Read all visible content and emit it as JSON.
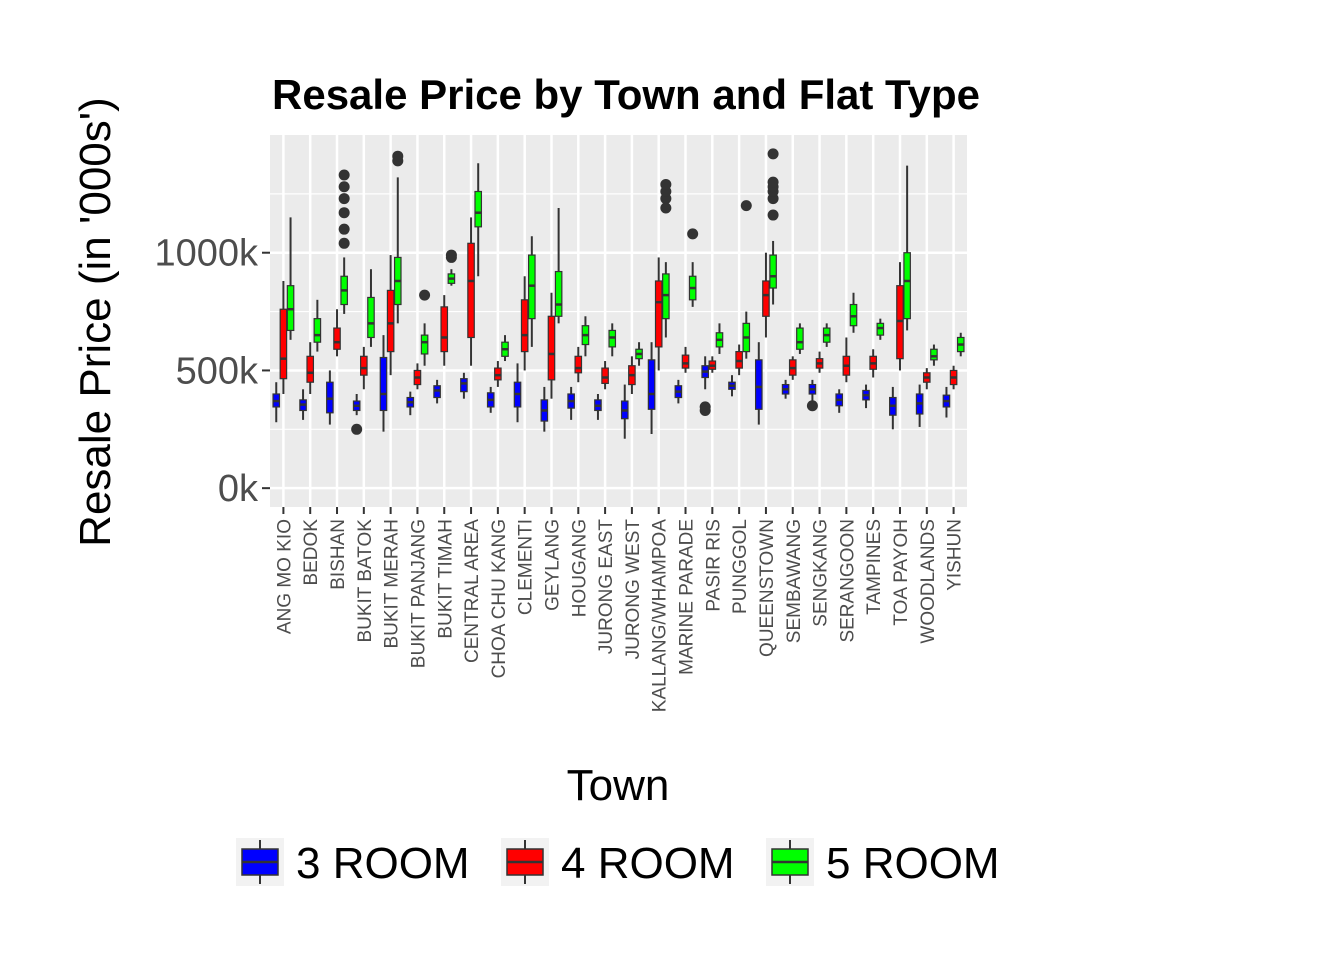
{
  "chart_data": {
    "type": "boxplot",
    "title": "Resale Price by Town and Flat Type",
    "xlabel": "Town",
    "ylabel": "Resale Price (in '000s')",
    "ylim": [
      -80,
      1500
    ],
    "y_ticks": [
      0,
      500,
      1000
    ],
    "y_tick_labels": [
      "0k",
      "500k",
      "1000k"
    ],
    "grid": true,
    "legend_position": "bottom",
    "categories": [
      "ANG MO KIO",
      "BEDOK",
      "BISHAN",
      "BUKIT BATOK",
      "BUKIT MERAH",
      "BUKIT PANJANG",
      "BUKIT TIMAH",
      "CENTRAL AREA",
      "CHOA CHU KANG",
      "CLEMENTI",
      "GEYLANG",
      "HOUGANG",
      "JURONG EAST",
      "JURONG WEST",
      "KALLANG/WHAMPOA",
      "MARINE PARADE",
      "PASIR RIS",
      "PUNGGOL",
      "QUEENSTOWN",
      "SEMBAWANG",
      "SENGKANG",
      "SERANGOON",
      "TAMPINES",
      "TOA PAYOH",
      "WOODLANDS",
      "YISHUN"
    ],
    "series": [
      {
        "name": "3 ROOM",
        "color": "#0000ff",
        "boxes": [
          {
            "min": 280,
            "q1": 345,
            "median": 370,
            "q3": 400,
            "max": 450,
            "outliers": []
          },
          {
            "min": 290,
            "q1": 330,
            "median": 355,
            "q3": 375,
            "max": 420,
            "outliers": []
          },
          {
            "min": 270,
            "q1": 320,
            "median": 380,
            "q3": 450,
            "max": 500,
            "outliers": []
          },
          {
            "min": 310,
            "q1": 330,
            "median": 350,
            "q3": 370,
            "max": 400,
            "outliers": [
              250
            ]
          },
          {
            "min": 240,
            "q1": 330,
            "median": 400,
            "q3": 555,
            "max": 650,
            "outliers": []
          },
          {
            "min": 310,
            "q1": 345,
            "median": 365,
            "q3": 385,
            "max": 410,
            "outliers": []
          },
          {
            "min": 360,
            "q1": 385,
            "median": 415,
            "q3": 435,
            "max": 460,
            "outliers": []
          },
          {
            "min": 380,
            "q1": 410,
            "median": 445,
            "q3": 465,
            "max": 490,
            "outliers": []
          },
          {
            "min": 320,
            "q1": 345,
            "median": 375,
            "q3": 405,
            "max": 430,
            "outliers": []
          },
          {
            "min": 280,
            "q1": 345,
            "median": 400,
            "q3": 450,
            "max": 530,
            "outliers": []
          },
          {
            "min": 240,
            "q1": 285,
            "median": 330,
            "q3": 375,
            "max": 430,
            "outliers": []
          },
          {
            "min": 290,
            "q1": 340,
            "median": 370,
            "q3": 400,
            "max": 430,
            "outliers": []
          },
          {
            "min": 290,
            "q1": 330,
            "median": 350,
            "q3": 375,
            "max": 400,
            "outliers": []
          },
          {
            "min": 210,
            "q1": 295,
            "median": 330,
            "q3": 370,
            "max": 440,
            "outliers": []
          },
          {
            "min": 230,
            "q1": 335,
            "median": 400,
            "q3": 545,
            "max": 620,
            "outliers": []
          },
          {
            "min": 360,
            "q1": 385,
            "median": 410,
            "q3": 435,
            "max": 460,
            "outliers": []
          },
          {
            "min": 420,
            "q1": 470,
            "median": 495,
            "q3": 520,
            "max": 560,
            "outliers": [
              330,
              345
            ]
          },
          {
            "min": 390,
            "q1": 420,
            "median": 435,
            "q3": 450,
            "max": 480,
            "outliers": []
          },
          {
            "min": 270,
            "q1": 335,
            "median": 430,
            "q3": 545,
            "max": 620,
            "outliers": []
          },
          {
            "min": 380,
            "q1": 400,
            "median": 420,
            "q3": 440,
            "max": 460,
            "outliers": []
          },
          {
            "min": 370,
            "q1": 400,
            "median": 420,
            "q3": 440,
            "max": 460,
            "outliers": [
              350
            ]
          },
          {
            "min": 320,
            "q1": 350,
            "median": 375,
            "q3": 400,
            "max": 420,
            "outliers": []
          },
          {
            "min": 340,
            "q1": 375,
            "median": 395,
            "q3": 415,
            "max": 440,
            "outliers": []
          },
          {
            "min": 250,
            "q1": 310,
            "median": 350,
            "q3": 385,
            "max": 430,
            "outliers": []
          },
          {
            "min": 260,
            "q1": 315,
            "median": 360,
            "q3": 400,
            "max": 440,
            "outliers": []
          },
          {
            "min": 300,
            "q1": 345,
            "median": 370,
            "q3": 395,
            "max": 430,
            "outliers": []
          }
        ]
      },
      {
        "name": "4 ROOM",
        "color": "#ff0000",
        "boxes": [
          {
            "min": 400,
            "q1": 465,
            "median": 550,
            "q3": 760,
            "max": 880,
            "outliers": []
          },
          {
            "min": 400,
            "q1": 450,
            "median": 490,
            "q3": 560,
            "max": 620,
            "outliers": []
          },
          {
            "min": 560,
            "q1": 590,
            "median": 620,
            "q3": 680,
            "max": 760,
            "outliers": []
          },
          {
            "min": 420,
            "q1": 480,
            "median": 510,
            "q3": 560,
            "max": 600,
            "outliers": []
          },
          {
            "min": 480,
            "q1": 580,
            "median": 700,
            "q3": 840,
            "max": 990,
            "outliers": []
          },
          {
            "min": 420,
            "q1": 440,
            "median": 470,
            "q3": 500,
            "max": 530,
            "outliers": []
          },
          {
            "min": 520,
            "q1": 580,
            "median": 640,
            "q3": 770,
            "max": 820,
            "outliers": []
          },
          {
            "min": 520,
            "q1": 640,
            "median": 880,
            "q3": 1040,
            "max": 1150,
            "outliers": []
          },
          {
            "min": 430,
            "q1": 460,
            "median": 480,
            "q3": 510,
            "max": 540,
            "outliers": []
          },
          {
            "min": 500,
            "q1": 580,
            "median": 650,
            "q3": 800,
            "max": 900,
            "outliers": []
          },
          {
            "min": 380,
            "q1": 460,
            "median": 570,
            "q3": 730,
            "max": 830,
            "outliers": []
          },
          {
            "min": 450,
            "q1": 490,
            "median": 510,
            "q3": 560,
            "max": 600,
            "outliers": []
          },
          {
            "min": 420,
            "q1": 445,
            "median": 470,
            "q3": 510,
            "max": 540,
            "outliers": []
          },
          {
            "min": 400,
            "q1": 440,
            "median": 480,
            "q3": 520,
            "max": 560,
            "outliers": []
          },
          {
            "min": 500,
            "q1": 600,
            "median": 790,
            "q3": 880,
            "max": 980,
            "outliers": []
          },
          {
            "min": 490,
            "q1": 510,
            "median": 530,
            "q3": 565,
            "max": 600,
            "outliers": []
          },
          {
            "min": 490,
            "q1": 505,
            "median": 520,
            "q3": 540,
            "max": 560,
            "outliers": []
          },
          {
            "min": 480,
            "q1": 510,
            "median": 540,
            "q3": 580,
            "max": 610,
            "outliers": []
          },
          {
            "min": 640,
            "q1": 730,
            "median": 820,
            "q3": 880,
            "max": 1000,
            "outliers": []
          },
          {
            "min": 460,
            "q1": 480,
            "median": 510,
            "q3": 545,
            "max": 560,
            "outliers": []
          },
          {
            "min": 490,
            "q1": 510,
            "median": 530,
            "q3": 550,
            "max": 580,
            "outliers": []
          },
          {
            "min": 450,
            "q1": 480,
            "median": 520,
            "q3": 560,
            "max": 640,
            "outliers": []
          },
          {
            "min": 470,
            "q1": 505,
            "median": 530,
            "q3": 560,
            "max": 590,
            "outliers": []
          },
          {
            "min": 500,
            "q1": 550,
            "median": 710,
            "q3": 860,
            "max": 960,
            "outliers": []
          },
          {
            "min": 420,
            "q1": 450,
            "median": 470,
            "q3": 490,
            "max": 510,
            "outliers": []
          },
          {
            "min": 420,
            "q1": 440,
            "median": 470,
            "q3": 500,
            "max": 520,
            "outliers": []
          }
        ]
      },
      {
        "name": "5 ROOM",
        "color": "#00ff00",
        "boxes": [
          {
            "min": 630,
            "q1": 670,
            "median": 760,
            "q3": 860,
            "max": 1150,
            "outliers": []
          },
          {
            "min": 580,
            "q1": 620,
            "median": 650,
            "q3": 720,
            "max": 800,
            "outliers": []
          },
          {
            "min": 740,
            "q1": 780,
            "median": 840,
            "q3": 900,
            "max": 980,
            "outliers": [
              1040,
              1100,
              1170,
              1230,
              1280,
              1330
            ]
          },
          {
            "min": 600,
            "q1": 640,
            "median": 700,
            "q3": 810,
            "max": 930,
            "outliers": []
          },
          {
            "min": 700,
            "q1": 780,
            "median": 880,
            "q3": 980,
            "max": 1320,
            "outliers": [
              1390,
              1410
            ]
          },
          {
            "min": 520,
            "q1": 570,
            "median": 620,
            "q3": 650,
            "max": 700,
            "outliers": [
              820
            ]
          },
          {
            "min": 860,
            "q1": 870,
            "median": 890,
            "q3": 910,
            "max": 930,
            "outliers": [
              980,
              990
            ]
          },
          {
            "min": 900,
            "q1": 1110,
            "median": 1170,
            "q3": 1260,
            "max": 1380,
            "outliers": []
          },
          {
            "min": 540,
            "q1": 560,
            "median": 590,
            "q3": 620,
            "max": 650,
            "outliers": []
          },
          {
            "min": 600,
            "q1": 720,
            "median": 860,
            "q3": 990,
            "max": 1070,
            "outliers": []
          },
          {
            "min": 700,
            "q1": 730,
            "median": 780,
            "q3": 920,
            "max": 1190,
            "outliers": []
          },
          {
            "min": 560,
            "q1": 610,
            "median": 650,
            "q3": 690,
            "max": 730,
            "outliers": []
          },
          {
            "min": 560,
            "q1": 600,
            "median": 640,
            "q3": 670,
            "max": 700,
            "outliers": []
          },
          {
            "min": 520,
            "q1": 550,
            "median": 570,
            "q3": 590,
            "max": 620,
            "outliers": []
          },
          {
            "min": 640,
            "q1": 720,
            "median": 820,
            "q3": 910,
            "max": 960,
            "outliers": [
              1190,
              1230,
              1260,
              1290
            ]
          },
          {
            "min": 770,
            "q1": 800,
            "median": 850,
            "q3": 900,
            "max": 960,
            "outliers": [
              1080
            ]
          },
          {
            "min": 570,
            "q1": 600,
            "median": 630,
            "q3": 660,
            "max": 700,
            "outliers": []
          },
          {
            "min": 550,
            "q1": 580,
            "median": 640,
            "q3": 700,
            "max": 750,
            "outliers": [
              1200
            ]
          },
          {
            "min": 780,
            "q1": 850,
            "median": 900,
            "q3": 990,
            "max": 1050,
            "outliers": [
              1160,
              1230,
              1260,
              1280,
              1300,
              1420
            ]
          },
          {
            "min": 570,
            "q1": 590,
            "median": 620,
            "q3": 680,
            "max": 700,
            "outliers": []
          },
          {
            "min": 600,
            "q1": 620,
            "median": 650,
            "q3": 680,
            "max": 700,
            "outliers": []
          },
          {
            "min": 660,
            "q1": 690,
            "median": 730,
            "q3": 780,
            "max": 830,
            "outliers": []
          },
          {
            "min": 630,
            "q1": 650,
            "median": 680,
            "q3": 700,
            "max": 720,
            "outliers": []
          },
          {
            "min": 670,
            "q1": 720,
            "median": 880,
            "q3": 1000,
            "max": 1370,
            "outliers": []
          },
          {
            "min": 520,
            "q1": 545,
            "median": 560,
            "q3": 590,
            "max": 610,
            "outliers": []
          },
          {
            "min": 560,
            "q1": 580,
            "median": 610,
            "q3": 640,
            "max": 660,
            "outliers": []
          }
        ]
      }
    ]
  }
}
